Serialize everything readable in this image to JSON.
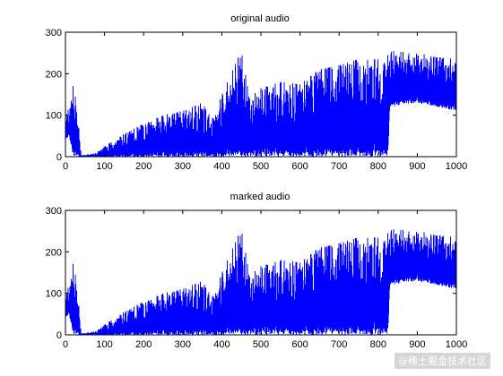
{
  "watermark": "@稀土掘金技术社区",
  "series_color": "#0000ff",
  "chart_data": [
    {
      "type": "line",
      "title": "original audio",
      "xlim": [
        0,
        1000
      ],
      "ylim": [
        0,
        300
      ],
      "xticks": [
        0,
        100,
        200,
        300,
        400,
        500,
        600,
        700,
        800,
        900,
        1000
      ],
      "yticks": [
        0,
        100,
        200,
        300
      ],
      "grid": false,
      "envelope": {
        "x": [
          0,
          10,
          20,
          30,
          40,
          50,
          60,
          80,
          100,
          150,
          200,
          250,
          300,
          350,
          380,
          400,
          450,
          470,
          500,
          550,
          600,
          650,
          700,
          750,
          800,
          825,
          830,
          900,
          950,
          1000
        ],
        "low": [
          40,
          50,
          0,
          0,
          0,
          0,
          0,
          0,
          0,
          0,
          0,
          0,
          0,
          0,
          0,
          0,
          0,
          0,
          0,
          0,
          0,
          0,
          0,
          0,
          0,
          0,
          120,
          130,
          120,
          110
        ],
        "high": [
          120,
          110,
          175,
          120,
          5,
          5,
          5,
          10,
          25,
          55,
          80,
          100,
          110,
          130,
          90,
          150,
          255,
          150,
          165,
          180,
          175,
          210,
          220,
          235,
          240,
          245,
          255,
          250,
          240,
          235
        ]
      }
    },
    {
      "type": "line",
      "title": "marked audio",
      "xlim": [
        0,
        1000
      ],
      "ylim": [
        0,
        300
      ],
      "xticks": [
        0,
        100,
        200,
        300,
        400,
        500,
        600,
        700,
        800,
        900,
        1000
      ],
      "yticks": [
        0,
        100,
        200,
        300
      ],
      "grid": false,
      "envelope": {
        "x": [
          0,
          10,
          20,
          30,
          40,
          50,
          60,
          80,
          100,
          150,
          200,
          250,
          300,
          350,
          380,
          400,
          450,
          470,
          500,
          550,
          600,
          650,
          700,
          750,
          800,
          825,
          830,
          900,
          950,
          1000
        ],
        "low": [
          40,
          50,
          0,
          0,
          0,
          0,
          0,
          0,
          0,
          0,
          0,
          0,
          0,
          0,
          0,
          0,
          0,
          0,
          0,
          0,
          0,
          0,
          0,
          0,
          0,
          0,
          120,
          130,
          120,
          110
        ],
        "high": [
          120,
          110,
          175,
          120,
          5,
          5,
          5,
          10,
          25,
          55,
          80,
          100,
          110,
          130,
          90,
          150,
          255,
          150,
          165,
          180,
          175,
          210,
          220,
          235,
          240,
          245,
          255,
          250,
          240,
          235
        ]
      }
    }
  ]
}
